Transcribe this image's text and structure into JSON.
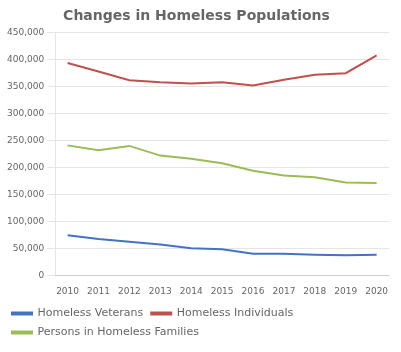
{
  "chart_data": {
    "type": "line",
    "title": "Changes in Homeless Populations",
    "x": [
      2010,
      2011,
      2012,
      2013,
      2014,
      2015,
      2016,
      2017,
      2018,
      2019,
      2020
    ],
    "series": [
      {
        "name": "Homeless Veterans",
        "color": "#4472C4",
        "values": [
          74000,
          67000,
          62000,
          57000,
          50000,
          48000,
          40000,
          40000,
          38000,
          37000,
          38000
        ]
      },
      {
        "name": "Homeless Individuals",
        "color": "#C0504D",
        "values": [
          394000,
          378000,
          362000,
          358000,
          356000,
          358000,
          352000,
          363000,
          372000,
          375000,
          408000
        ]
      },
      {
        "name": "Persons in Homeless Families",
        "color": "#9BBB59",
        "values": [
          241000,
          232000,
          240000,
          222000,
          216000,
          208000,
          194000,
          185000,
          182000,
          172000,
          171000
        ]
      }
    ],
    "xlim": [
      2009.6,
      2020.4
    ],
    "xticks": [
      2010,
      2011,
      2012,
      2013,
      2014,
      2015,
      2016,
      2017,
      2018,
      2019,
      2020
    ],
    "ylim": [
      0,
      450000
    ],
    "yticks": [
      0,
      {
        "value": 50000,
        "label": "50,000"
      },
      {
        "value": 100000,
        "label": "100,000"
      },
      {
        "value": 150000,
        "label": "150,000"
      },
      {
        "value": 200000,
        "label": "200,000"
      },
      {
        "value": 250000,
        "label": "250,000"
      },
      {
        "value": 300000,
        "label": "300,000"
      },
      {
        "value": 350000,
        "label": "350,000"
      },
      {
        "value": 400000,
        "label": "400,000"
      },
      {
        "value": 450000,
        "label": "450,000"
      }
    ],
    "grid": "y",
    "legend": "bottom"
  }
}
